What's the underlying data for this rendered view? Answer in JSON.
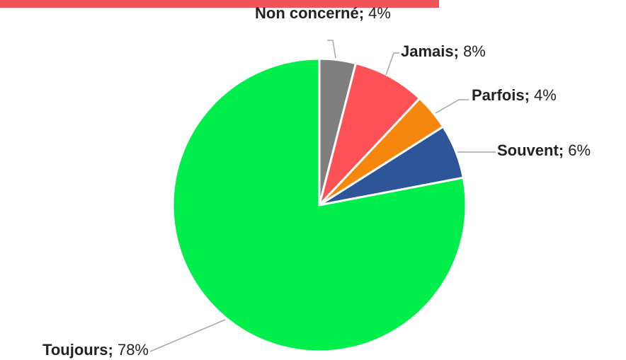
{
  "chart_data": {
    "type": "pie",
    "title": "",
    "slices": [
      {
        "label": "Non concerné",
        "value": 4,
        "display": "4%",
        "color": "#7f7f7f"
      },
      {
        "label": "Jamais",
        "value": 8,
        "display": "8%",
        "color": "#ff5256"
      },
      {
        "label": "Parfois",
        "value": 4,
        "display": "4%",
        "color": "#f5870f"
      },
      {
        "label": "Souvent",
        "value": 6,
        "display": "6%",
        "color": "#2e5597"
      },
      {
        "label": "Toujours",
        "value": 78,
        "display": "78%",
        "color": "#00ee4c"
      }
    ],
    "label_format": "{label}; {value}",
    "legend": "none"
  },
  "accent_bar_color": "#f2545b"
}
